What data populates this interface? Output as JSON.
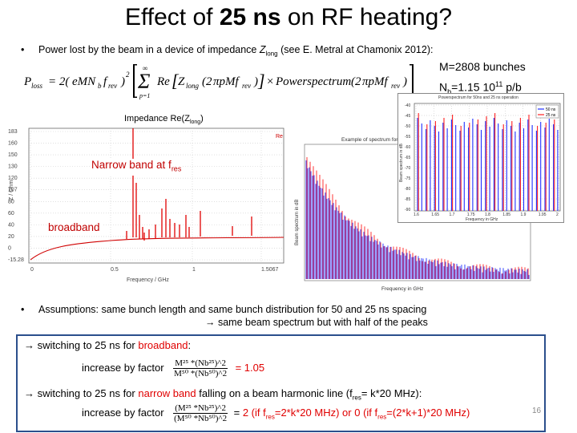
{
  "title": {
    "pre": "Effect of ",
    "bold": "25 ns",
    "post": " on RF heating?"
  },
  "bullet1": {
    "text": "Power lost by the beam in a device of impedance ",
    "z": "Z",
    "zsub": "long",
    "post": " (see E. Metral at Chamonix 2012):"
  },
  "formula": "P_loss = 2(eMN_b f_rev)² Σ_{p=1}^{∞} Re[Z_long(2πpMf_rev)] × Powerspectrum(2πpMf_rev)",
  "params": {
    "m": "M=2808 bunches",
    "nb_pre": "N",
    "nb_sub": "b",
    "nb_val": "=1.15 10",
    "nb_sup": "11",
    "nb_unit": " p/b"
  },
  "impedance_label": {
    "text": "Impedance Re(Z",
    "sub": "long",
    "close": ")"
  },
  "annotations": {
    "narrow": "Narrow band at f",
    "narrow_sub": "res",
    "broad": "broadband"
  },
  "plot_left": {
    "xlabel": "Frequency / GHz",
    "ylabel": "Z / Ohm",
    "xticks": [
      "0",
      "0.5",
      "1",
      "1.5067"
    ],
    "yticks": [
      "183",
      "160",
      "150",
      "130",
      "120",
      "107",
      "80",
      "60",
      "40",
      "20",
      "0",
      "-15.28"
    ],
    "tag": "Re"
  },
  "plot_right": {
    "title": "Example of spectrum for",
    "xlabel": "Frequency in GHz",
    "ylabel": "Beam spectrum in dB"
  },
  "plot_inset": {
    "title": "Powerspectrum for 50ns and 25 ns operation",
    "legend": [
      "50 ns",
      "25 ns"
    ],
    "yticks": [
      "-40",
      "-45",
      "-50",
      "-55",
      "-60",
      "-65",
      "-70",
      "-75",
      "-80",
      "-85",
      "-90"
    ],
    "xticks": [
      "1.6",
      "1.65",
      "1.7",
      "1.75",
      "1.8",
      "1.85",
      "1.9",
      "1.95",
      "2"
    ],
    "xlabel": "Frequency in GHz",
    "ylabel": "Beam spectrum in dB",
    "colors": {
      "s50": "#2030ff",
      "s25": "#ff2020"
    }
  },
  "bullet2": {
    "line1": "Assumptions: same bunch length and same bunch distribution for 50 and 25 ns spacing",
    "line2": "same beam spectrum but with half of the peaks"
  },
  "box": {
    "l1_pre": "switching to 25 ns for ",
    "l1_red": "broadband",
    "l1_post": ":",
    "l2_label": "increase by factor",
    "f1_num": "M²⁵ *(Nb²⁵)^2",
    "f1_den": "M⁵⁰ *(Nb⁵⁰)^2",
    "f1_val": "= 1.05",
    "l3_pre": "switching to 25 ns for ",
    "l3_red": "narrow band",
    "l3_mid": " falling on a beam harmonic line (f",
    "l3_sub": "res",
    "l3_post": "= k*20 MHz):",
    "l4_label": "increase by factor",
    "f2_num": "(M²⁵ *Nb²⁵)^2",
    "f2_den": "(M⁵⁰ *Nb⁵⁰)^2",
    "f2_eq": "=",
    "f2_val1": "2",
    "f2_cond1_pre": "(if f",
    "f2_cond1_sub": "res",
    "f2_cond1_post": "=2*k*20 MHz)",
    "f2_or": "or",
    "f2_val2": "0",
    "f2_cond2_pre": "(if f",
    "f2_cond2_sub": "res",
    "f2_cond2_post": "=(2*k+1)*20 MHz)"
  },
  "slide_number": "16"
}
